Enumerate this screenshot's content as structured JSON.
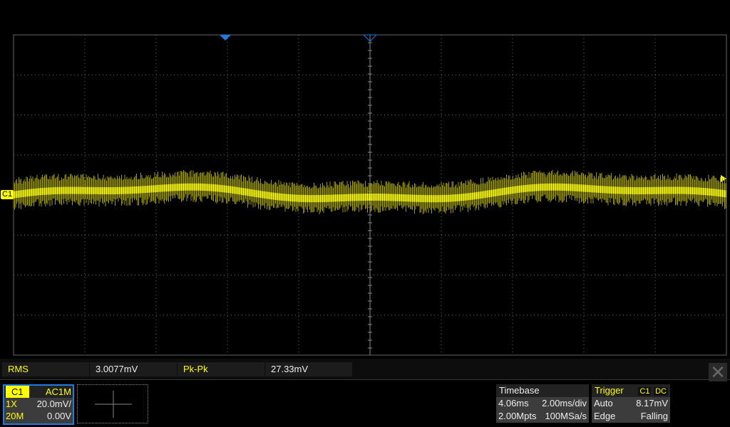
{
  "colors": {
    "channel1": "#ffff00",
    "grid": "#666666",
    "accent": "#1e7be0"
  },
  "waveform": {
    "channel": "C1",
    "description_level_mV": 0,
    "volts_per_div_mV": 20,
    "divisions_x": 10,
    "divisions_y": 8
  },
  "channel_marker": "C1",
  "measurements": [
    {
      "label": "RMS",
      "value": "3.0077mV"
    },
    {
      "label": "Pk-Pk",
      "value": "27.33mV"
    }
  ],
  "close_icon": "close-icon",
  "channel": {
    "name": "C1",
    "coupling": "AC1M",
    "probe": "1X",
    "scale": "20.0mV/",
    "bandwidth": "20M",
    "offset": "0.00V"
  },
  "timebase": {
    "title": "Timebase",
    "delay": "4.06ms",
    "scale": "2.00ms/div",
    "points": "2.00Mpts",
    "rate": "100MSa/s"
  },
  "trigger": {
    "title": "Trigger",
    "source": "C1",
    "coupling": "DC",
    "mode": "Auto",
    "level": "8.17mV",
    "type": "Edge",
    "slope": "Falling"
  }
}
